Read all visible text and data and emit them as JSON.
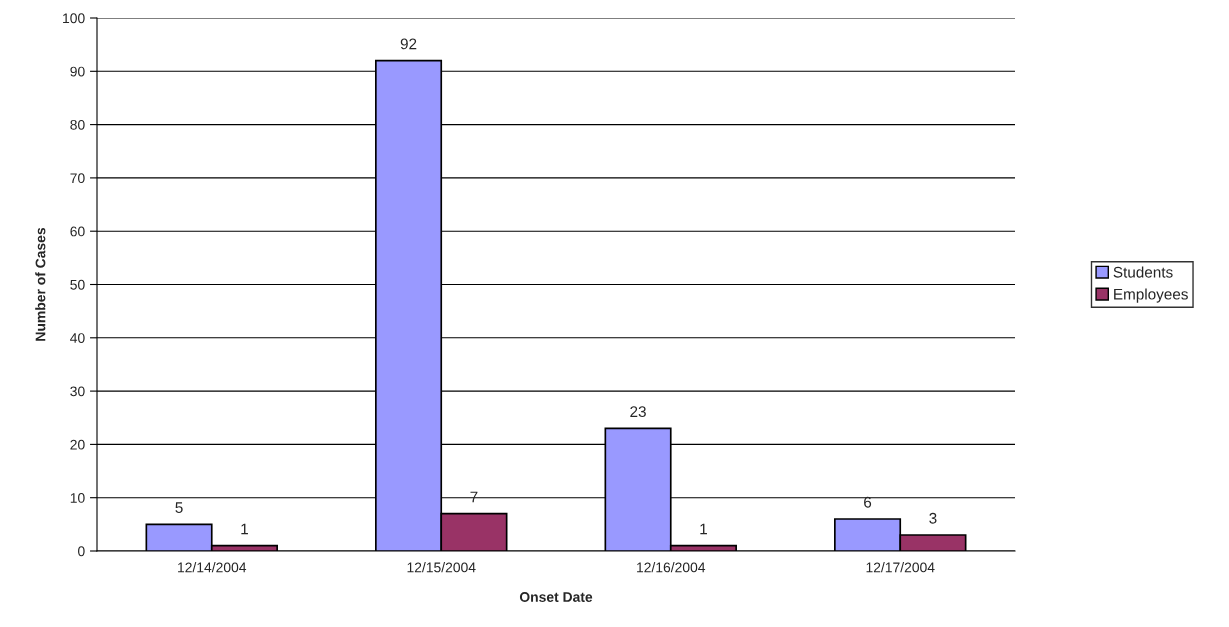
{
  "chart_data": {
    "type": "bar",
    "xlabel": "Onset Date",
    "ylabel": "Number of Cases",
    "categories": [
      "12/14/2004",
      "12/15/2004",
      "12/16/2004",
      "12/17/2004"
    ],
    "series": [
      {
        "name": "Students",
        "color": "#9999ff",
        "values": [
          5,
          92,
          23,
          6
        ]
      },
      {
        "name": "Employees",
        "color": "#993366",
        "values": [
          1,
          7,
          1,
          3
        ]
      }
    ],
    "ylim": [
      0,
      100
    ],
    "yticks": [
      0,
      10,
      20,
      30,
      40,
      50,
      60,
      70,
      80,
      90,
      100
    ],
    "grid": "y",
    "legend": "right",
    "data_labels": true
  }
}
